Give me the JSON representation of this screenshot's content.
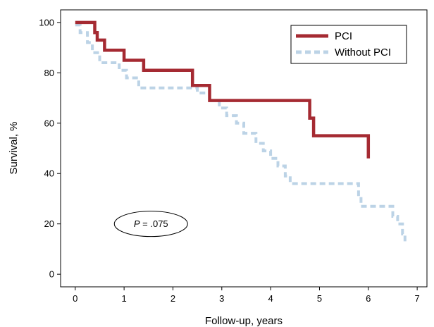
{
  "chart_data": {
    "type": "line",
    "title": "",
    "xlabel": "Follow-up, years",
    "ylabel": "Survival, %",
    "xlim": [
      -0.3,
      7.2
    ],
    "ylim": [
      -5,
      105
    ],
    "xticks": [
      0,
      1,
      2,
      3,
      4,
      5,
      6,
      7
    ],
    "yticks": [
      0,
      20,
      40,
      60,
      80,
      100
    ],
    "grid": false,
    "legend_position": "top-right",
    "series": [
      {
        "name": "PCI",
        "style": "solid step",
        "color": "#a52a32",
        "x": [
          0,
          0.4,
          0.4,
          0.45,
          0.45,
          0.6,
          0.6,
          1.0,
          1.0,
          1.4,
          1.4,
          2.4,
          2.4,
          2.75,
          2.75,
          4.8,
          4.8,
          4.88,
          4.88,
          6.0,
          6.0
        ],
        "y": [
          100,
          100,
          96,
          96,
          93,
          93,
          89,
          89,
          85,
          85,
          81,
          81,
          75,
          75,
          69,
          69,
          62,
          62,
          55,
          55,
          46
        ]
      },
      {
        "name": "Without PCI",
        "style": "dashed step",
        "color": "#bcd3e6",
        "x": [
          0,
          0.1,
          0.1,
          0.25,
          0.25,
          0.35,
          0.35,
          0.5,
          0.5,
          0.9,
          0.9,
          1.05,
          1.05,
          1.3,
          1.3,
          2.5,
          2.5,
          2.75,
          2.75,
          2.95,
          2.95,
          3.1,
          3.1,
          3.3,
          3.3,
          3.45,
          3.45,
          3.7,
          3.7,
          3.85,
          3.85,
          4.0,
          4.0,
          4.15,
          4.15,
          4.3,
          4.3,
          4.4,
          4.4,
          5.8,
          5.8,
          5.85,
          5.85,
          6.5,
          6.5,
          6.6,
          6.6,
          6.7,
          6.7,
          6.75,
          6.75
        ],
        "y": [
          99,
          99,
          96,
          96,
          92,
          92,
          88,
          88,
          84,
          84,
          81,
          81,
          78,
          78,
          74,
          74,
          72,
          72,
          69,
          69,
          66,
          66,
          63,
          63,
          60,
          60,
          56,
          56,
          52,
          52,
          49,
          49,
          46,
          46,
          43,
          43,
          39,
          39,
          36,
          36,
          31,
          31,
          27,
          27,
          23,
          23,
          20,
          20,
          16,
          16,
          13
        ]
      }
    ],
    "annotation": {
      "p_label": "P",
      "p_value": " = .075",
      "x": 1.55,
      "y": 20
    }
  }
}
